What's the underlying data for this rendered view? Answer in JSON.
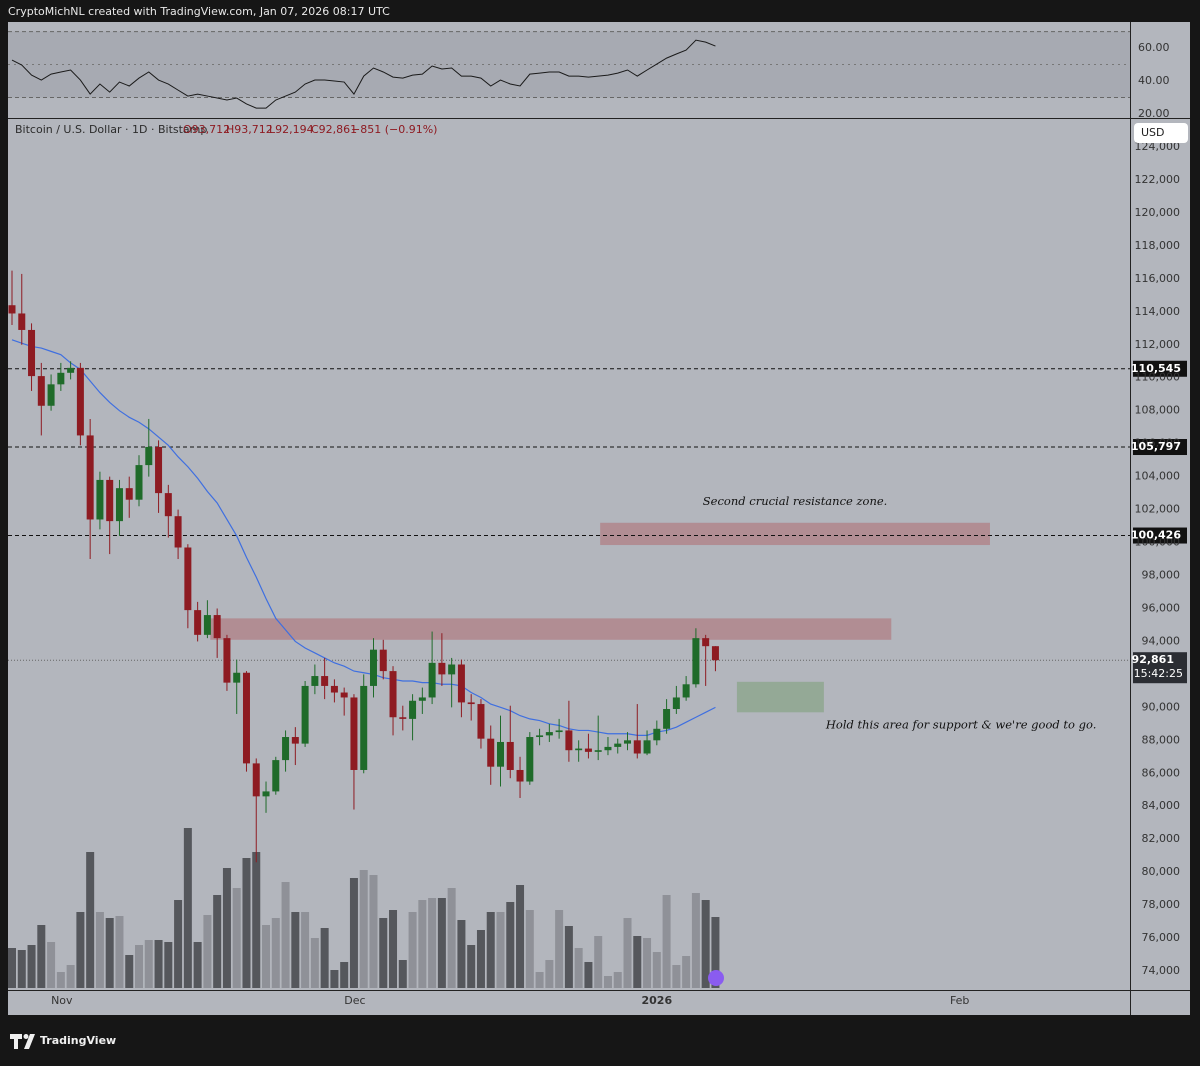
{
  "header": {
    "credit": "CryptoMichNL created with TradingView.com, Jan 07, 2026 08:17 UTC"
  },
  "footer": {
    "brand": "TradingView"
  },
  "chart_data": {
    "type": "candlestick",
    "legend": {
      "symbol": "Bitcoin / U.S. Dollar · 1D · Bitstamp",
      "open": "O93,712",
      "high": "H93,712",
      "low": "L92,194",
      "close": "C92,861",
      "change": "−851 (−0.91%)"
    },
    "currency": "USD",
    "up_color": "#1f6b2a",
    "down_color": "#8e1b22",
    "open": [
      114400,
      113900,
      112900,
      110100,
      108300,
      109600,
      110300,
      110600,
      106500,
      101400,
      103800,
      101300,
      103300,
      102600,
      104700,
      105800,
      103000,
      101600,
      99700,
      95900,
      94400,
      95600,
      94200,
      91500,
      92100,
      86600,
      84600,
      84900,
      86800,
      88200,
      87800,
      91300,
      91900,
      91300,
      90900,
      90600,
      86200,
      91300,
      93500,
      92200,
      89400,
      89300,
      90400,
      90600,
      92700,
      92000,
      92600,
      90300,
      90200,
      88100,
      86400,
      87900,
      86200,
      85500,
      88200,
      88300,
      88500,
      88600,
      87400,
      87500,
      87300,
      87400,
      87600,
      87800,
      88000,
      87200,
      88000,
      88700,
      89900,
      90600,
      91400,
      94200,
      93712
    ],
    "high": [
      116500,
      116300,
      113300,
      110900,
      110200,
      110900,
      111000,
      110900,
      107500,
      104300,
      104000,
      103800,
      104000,
      105300,
      107500,
      106200,
      103500,
      102000,
      99900,
      96400,
      96500,
      96000,
      94400,
      92900,
      92200,
      86900,
      85500,
      87000,
      88600,
      88800,
      91600,
      92600,
      93000,
      91700,
      91200,
      90800,
      92000,
      94200,
      94100,
      92500,
      90100,
      90800,
      91200,
      94600,
      94500,
      93000,
      92900,
      90800,
      90500,
      88900,
      89500,
      90100,
      87000,
      88500,
      88700,
      89000,
      89300,
      90400,
      88000,
      88400,
      89500,
      88200,
      88100,
      88500,
      90200,
      88600,
      89200,
      90500,
      91300,
      91900,
      94800,
      94400,
      93712
    ],
    "low": [
      113200,
      112000,
      109200,
      106500,
      108000,
      109200,
      109900,
      105900,
      99000,
      100800,
      99300,
      100400,
      101500,
      102200,
      104000,
      101800,
      100300,
      99000,
      94800,
      94000,
      94200,
      93000,
      91000,
      89600,
      86100,
      80600,
      83600,
      84700,
      86100,
      86500,
      87600,
      90800,
      90500,
      90300,
      89500,
      83800,
      86000,
      90600,
      91700,
      88300,
      88600,
      88000,
      89600,
      90200,
      91300,
      90000,
      89400,
      89200,
      87500,
      85300,
      85200,
      85700,
      84500,
      85300,
      87700,
      87900,
      88100,
      86700,
      86700,
      86900,
      86800,
      87100,
      87200,
      87400,
      86900,
      87100,
      87700,
      88400,
      89600,
      90400,
      91200,
      91300,
      92194
    ],
    "close": [
      113900,
      112900,
      110100,
      108300,
      109600,
      110300,
      110600,
      106500,
      101400,
      103800,
      101300,
      103300,
      102600,
      104700,
      105800,
      103000,
      101600,
      99700,
      95900,
      94400,
      95600,
      94200,
      91500,
      92100,
      86600,
      84600,
      84900,
      86800,
      88200,
      87800,
      91300,
      91900,
      91300,
      90900,
      90600,
      86200,
      91300,
      93500,
      92200,
      89400,
      89300,
      90400,
      90600,
      92700,
      92000,
      92600,
      90300,
      90200,
      88100,
      86400,
      87900,
      86200,
      85500,
      88200,
      88300,
      88500,
      88600,
      87400,
      87500,
      87300,
      87400,
      87600,
      87800,
      88000,
      87200,
      88000,
      88700,
      89900,
      90600,
      91400,
      94200,
      93712,
      92861
    ],
    "ema": {
      "color": "#3f6fe0",
      "values": [
        112300,
        112100,
        111900,
        111800,
        111600,
        111400,
        110900,
        110500,
        109800,
        109100,
        108500,
        108000,
        107600,
        107300,
        106900,
        106400,
        105900,
        105200,
        104600,
        103900,
        103100,
        102400,
        101400,
        100400,
        99100,
        97900,
        96600,
        95400,
        94700,
        94000,
        93600,
        93300,
        93000,
        92700,
        92500,
        92200,
        92100,
        92000,
        91800,
        91700,
        91600,
        91600,
        91500,
        91500,
        91400,
        91400,
        91300,
        90900,
        90600,
        90200,
        90000,
        89800,
        89500,
        89300,
        89200,
        89000,
        88900,
        88700,
        88600,
        88600,
        88500,
        88400,
        88400,
        88400,
        88300,
        88300,
        88500,
        88600,
        88800,
        89100,
        89400,
        89700,
        90000
      ]
    },
    "volume": {
      "up_color": "#8f9198",
      "down_color": "#55575c",
      "values": [
        40,
        38,
        43,
        63,
        46,
        16,
        23,
        76,
        136,
        76,
        70,
        72,
        33,
        43,
        48,
        48,
        46,
        88,
        160,
        46,
        73,
        93,
        120,
        100,
        130,
        136,
        63,
        70,
        106,
        76,
        76,
        50,
        60,
        18,
        26,
        110,
        118,
        113,
        70,
        78,
        28,
        76,
        88,
        90,
        90,
        100,
        68,
        43,
        58,
        76,
        76,
        86,
        103,
        78,
        16,
        28,
        78,
        62,
        40,
        26,
        52,
        12,
        16,
        70,
        52,
        50,
        36,
        93,
        23,
        32,
        95,
        88,
        71
      ]
    },
    "rsi": {
      "color": "#1a1a1a",
      "ylim": [
        17.6,
        75.8
      ],
      "bands": [
        30,
        70
      ],
      "yticks": [
        {
          "value": 60,
          "label": "60.00"
        },
        {
          "value": 40,
          "label": "40.00"
        },
        {
          "value": 20,
          "label": "20.00"
        }
      ],
      "values": [
        52.7,
        49.7,
        43.6,
        40.6,
        44.2,
        45.5,
        46.7,
        40.6,
        32.1,
        38.2,
        33.3,
        39.4,
        37.0,
        41.8,
        45.5,
        40.6,
        38.2,
        34.5,
        30.9,
        32.1,
        30.9,
        29.7,
        28.5,
        29.7,
        26.1,
        23.6,
        23.6,
        28.5,
        30.9,
        33.3,
        38.2,
        40.6,
        40.6,
        40.0,
        39.4,
        32.1,
        43.0,
        47.9,
        45.5,
        42.4,
        41.8,
        43.6,
        44.2,
        49.1,
        47.3,
        47.9,
        43.0,
        43.0,
        41.8,
        37.0,
        40.6,
        38.2,
        37.0,
        44.2,
        44.8,
        45.5,
        45.5,
        43.0,
        43.0,
        42.4,
        43.0,
        43.6,
        44.8,
        46.7,
        43.0,
        46.7,
        50.3,
        53.9,
        56.4,
        58.8,
        64.8,
        63.6,
        61.2
      ]
    },
    "ylim": [
      72850,
      125700
    ],
    "yticks": [
      {
        "value": 124000,
        "label": "124,000"
      },
      {
        "value": 122000,
        "label": "122,000"
      },
      {
        "value": 120000,
        "label": "120,000"
      },
      {
        "value": 118000,
        "label": "118,000"
      },
      {
        "value": 116000,
        "label": "116,000"
      },
      {
        "value": 114000,
        "label": "114,000"
      },
      {
        "value": 112000,
        "label": "112,000"
      },
      {
        "value": 110000,
        "label": "110,000"
      },
      {
        "value": 108000,
        "label": "108,000"
      },
      {
        "value": 106000,
        "label": "106,000"
      },
      {
        "value": 104000,
        "label": "104,000"
      },
      {
        "value": 102000,
        "label": "102,000"
      },
      {
        "value": 100000,
        "label": "100,000"
      },
      {
        "value": 98000,
        "label": "98,000"
      },
      {
        "value": 96000,
        "label": "96,000"
      },
      {
        "value": 94000,
        "label": "94,000"
      },
      {
        "value": 92000,
        "label": "92,000"
      },
      {
        "value": 90000,
        "label": "90,000"
      },
      {
        "value": 88000,
        "label": "88,000"
      },
      {
        "value": 86000,
        "label": "86,000"
      },
      {
        "value": 84000,
        "label": "84,000"
      },
      {
        "value": 82000,
        "label": "82,000"
      },
      {
        "value": 80000,
        "label": "80,000"
      },
      {
        "value": 78000,
        "label": "78,000"
      },
      {
        "value": 76000,
        "label": "76,000"
      },
      {
        "value": 74000,
        "label": "74,000"
      }
    ],
    "xticks": [
      {
        "value": 5.1,
        "label": "Nov"
      },
      {
        "value": 35.1,
        "label": "Dec"
      },
      {
        "value": 66,
        "label": "2026"
      },
      {
        "value": 97,
        "label": "Feb"
      }
    ],
    "grid": false,
    "levels": [
      {
        "value": 110545,
        "label": "110,545"
      },
      {
        "value": 105797,
        "label": "105,797"
      },
      {
        "value": 100426,
        "label": "100,426"
      }
    ],
    "last_price": {
      "value": 92861,
      "label": "92,861",
      "countdown": "15:42:25"
    },
    "zones": [
      {
        "from": 94100,
        "to": 95400,
        "start": 20.3,
        "end": 90,
        "color": "#b07f86"
      },
      {
        "from": 99850,
        "to": 101200,
        "start": 60.2,
        "end": 100.1,
        "color": "#b07f86",
        "annotation": "Second crucial resistance zone."
      },
      {
        "from": 89700,
        "to": 91550,
        "start": 74.2,
        "end": 83.1,
        "color": "#8aa48a",
        "annotation": "Hold this area for support & we're good to go."
      }
    ]
  }
}
